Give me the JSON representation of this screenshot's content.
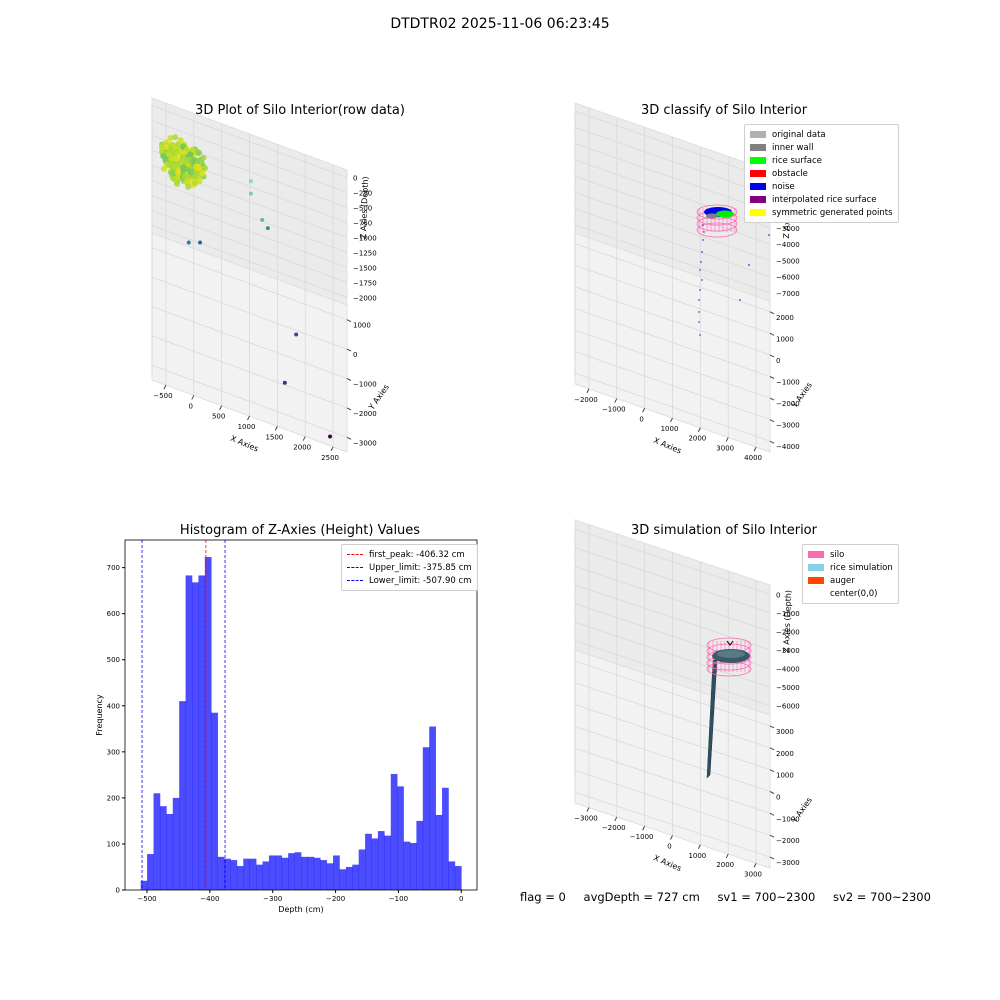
{
  "suptitle": "DTDTR02 2025-11-06 06:23:45",
  "chart_data": [
    {
      "type": "scatter",
      "title": "3D Plot of Silo Interior(row data)",
      "xlabel": "X Axies",
      "ylabel": "Y Axies",
      "zlabel": "Z Axies (Depth)",
      "x_ticks": [
        "−500",
        "0",
        "500",
        "1000",
        "1500",
        "2000",
        "2500"
      ],
      "y_ticks": [
        "−3000",
        "−2000",
        "−1000",
        "0",
        "1000"
      ],
      "z_ticks": [
        "0",
        "−250",
        "−500",
        "−750",
        "−1000",
        "−1250",
        "−1500",
        "−1750",
        "−2000"
      ],
      "xlim": [
        -650,
        2800
      ],
      "ylim": [
        -3200,
        1600
      ],
      "zlim": [
        -2050,
        100
      ],
      "points": [
        {
          "x": 2500,
          "y": -3000,
          "z": -2000
        },
        {
          "x": 1700,
          "y": -2200,
          "z": -1800
        },
        {
          "x": 1900,
          "y": -1000,
          "z": -1550
        },
        {
          "x": 200,
          "y": -900,
          "z": -700
        },
        {
          "x": 0,
          "y": -1200,
          "z": -620
        },
        {
          "x": 1400,
          "y": 900,
          "z": -950
        },
        {
          "x": 1300,
          "y": 1000,
          "z": -900
        },
        {
          "x": 1100,
          "y": 900,
          "z": -500
        },
        {
          "x": 1100,
          "y": 1100,
          "z": -400
        }
      ],
      "cluster": {
        "x_center": -100,
        "y_center": 400,
        "z_center": -150,
        "radius": 280
      }
    },
    {
      "type": "scatter",
      "title": "3D classify of Silo Interior",
      "xlabel": "X Axies",
      "ylabel": "Y Axies",
      "zlabel": "Z Axies (Depth)",
      "x_ticks": [
        "−2000",
        "−1000",
        "0",
        "1000",
        "2000",
        "3000",
        "4000"
      ],
      "y_ticks": [
        "−4000",
        "−3000",
        "−2000",
        "−1000",
        "0",
        "1000",
        "2000"
      ],
      "z_ticks": [
        "0",
        "−1000",
        "−2000",
        "−3000",
        "−4000",
        "−5000",
        "−6000",
        "−7000"
      ],
      "legend": [
        {
          "label": "original data",
          "color": "#b0b0b0"
        },
        {
          "label": "inner wall",
          "color": "#808080"
        },
        {
          "label": "rice surface",
          "color": "#00ff00"
        },
        {
          "label": "obstacle",
          "color": "#ff0000"
        },
        {
          "label": "noise",
          "color": "#0000ee"
        },
        {
          "label": "interpolated rice surface",
          "color": "#800080"
        },
        {
          "label": "symmetric generated points",
          "color": "#ffff00"
        }
      ],
      "legend_placement": "upper-right"
    },
    {
      "type": "bar",
      "title": "Histogram of Z-Axies (Height) Values",
      "xlabel": "Depth (cm)",
      "ylabel": "Frequency",
      "xlim": [
        -535,
        25
      ],
      "ylim": [
        0,
        760
      ],
      "x_ticks": [
        -500,
        -400,
        -300,
        -200,
        -100,
        0
      ],
      "y_ticks": [
        0,
        100,
        200,
        300,
        400,
        500,
        600,
        700
      ],
      "bin_start": -510,
      "bin_width": 10.2,
      "values": [
        20,
        78,
        210,
        182,
        165,
        200,
        410,
        683,
        668,
        683,
        723,
        385,
        72,
        68,
        65,
        52,
        68,
        68,
        55,
        62,
        75,
        75,
        70,
        80,
        82,
        72,
        72,
        70,
        65,
        58,
        75,
        45,
        50,
        55,
        88,
        122,
        112,
        128,
        118,
        252,
        225,
        105,
        102,
        150,
        310,
        355,
        163,
        222,
        62,
        52
      ],
      "bar_color": "#0000ff",
      "lines": [
        {
          "label": "first_peak: -406.32 cm",
          "x": -406.32,
          "color": "#ff0000"
        },
        {
          "label": "Upper_limit: -375.85 cm",
          "x": -375.85,
          "color": "#0000ff"
        },
        {
          "label": "Lower_limit: -507.90 cm",
          "x": -507.9,
          "color": "#0000ff"
        }
      ],
      "legend_placement": "upper-right"
    },
    {
      "type": "surface",
      "title": "3D simulation of Silo Interior",
      "xlabel": "X Axies",
      "ylabel": "Y Axies",
      "zlabel": "Z Axies (Depth)",
      "x_ticks": [
        "−3000",
        "−2000",
        "−1000",
        "0",
        "1000",
        "2000",
        "3000"
      ],
      "y_ticks": [
        "−3000",
        "−2000",
        "−1000",
        "0",
        "1000",
        "2000",
        "3000"
      ],
      "z_ticks": [
        "0",
        "−1000",
        "−2000",
        "−3000",
        "−4000",
        "−5000",
        "−6000"
      ],
      "legend": [
        {
          "label": "silo",
          "color": "#ff69b4"
        },
        {
          "label": "rice simulation",
          "color": "#87ceeb"
        },
        {
          "label": "auger",
          "color": "#ff4500"
        },
        {
          "label": "center(0,0)",
          "color": "#ffffff"
        }
      ],
      "legend_placement": "upper-right"
    }
  ],
  "status": {
    "flag": "flag = 0",
    "avg_depth": "avgDepth = 727 cm",
    "sv1": "sv1 = 700~2300",
    "sv2": "sv2 = 700~2300"
  }
}
